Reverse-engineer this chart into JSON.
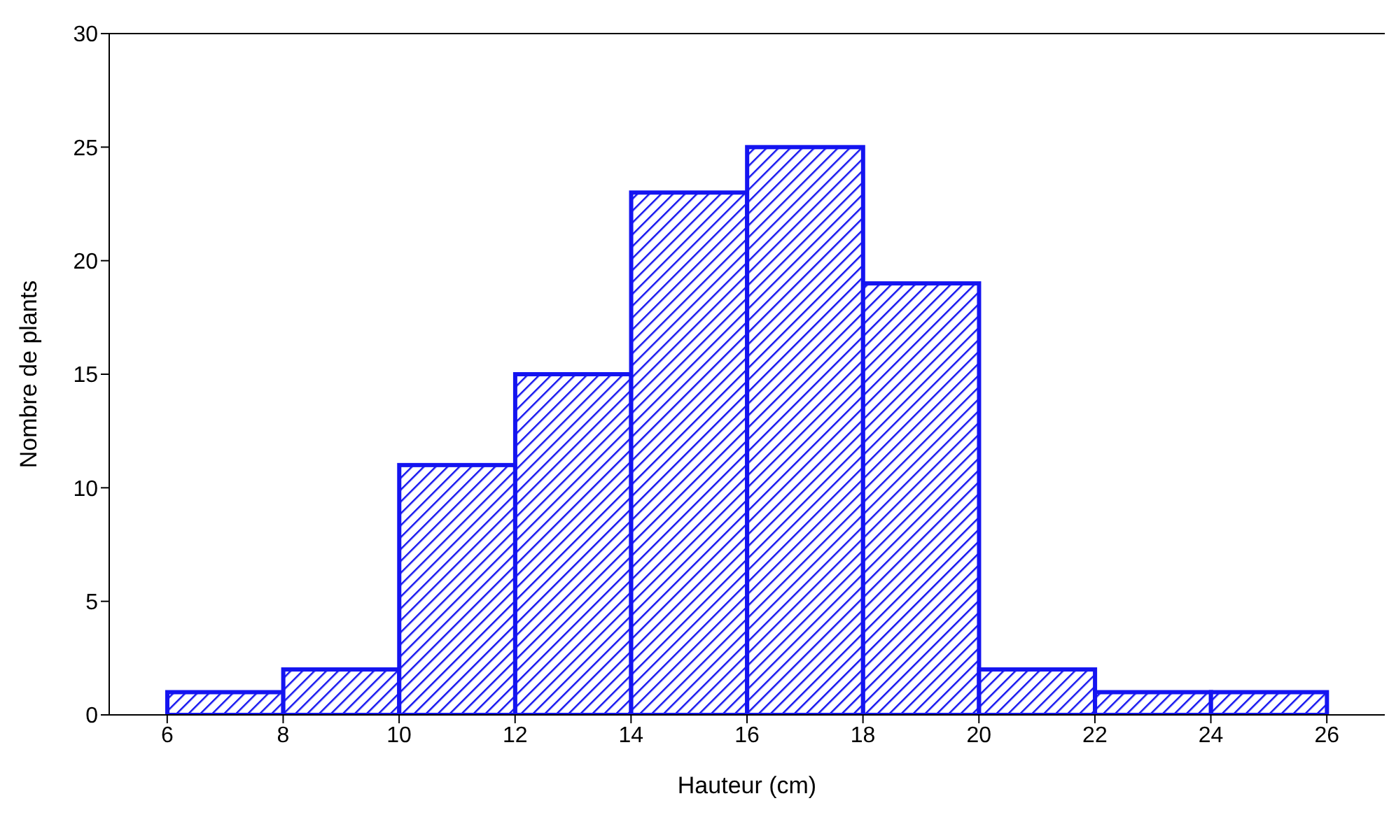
{
  "chart_data": {
    "type": "histogram",
    "xlabel": "Hauteur (cm)",
    "ylabel": "Nombre de plants",
    "bins": [
      6,
      8,
      10,
      12,
      14,
      16,
      18,
      20,
      22,
      24,
      26
    ],
    "values": [
      1,
      2,
      11,
      15,
      23,
      25,
      19,
      2,
      1,
      1
    ],
    "color": "#1414f0",
    "xlim": [
      5,
      27
    ],
    "xticks": [
      6,
      8,
      10,
      12,
      14,
      16,
      18,
      20,
      22,
      24,
      26
    ],
    "ylim": [
      0,
      30
    ],
    "yticks": [
      0,
      5,
      10,
      15,
      20,
      25,
      30
    ],
    "grid": false
  }
}
